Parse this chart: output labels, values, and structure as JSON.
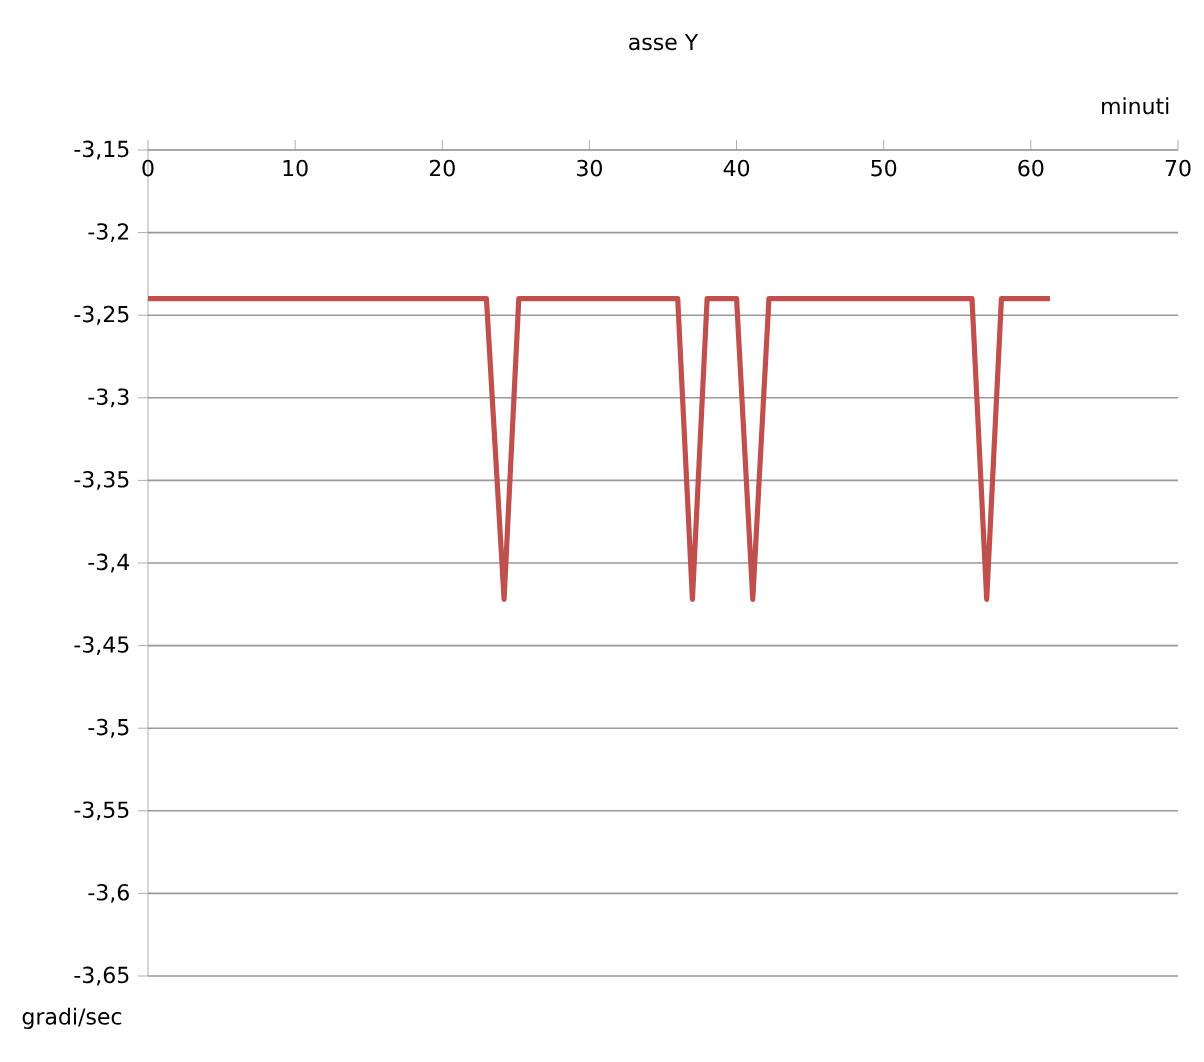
{
  "chart_data": {
    "type": "line",
    "title": "asse Y",
    "xlabel": "minuti",
    "ylabel": "gradi/sec",
    "xlim": [
      0,
      70
    ],
    "xticks": [
      0,
      10,
      20,
      30,
      40,
      50,
      60,
      70
    ],
    "ylim": [
      -3.65,
      -3.15
    ],
    "yticks": [
      {
        "value": -3.65,
        "label": "-3,65"
      },
      {
        "value": -3.6,
        "label": "-3,6"
      },
      {
        "value": -3.55,
        "label": "-3,55"
      },
      {
        "value": -3.5,
        "label": "-3,5"
      },
      {
        "value": -3.45,
        "label": "-3,45"
      },
      {
        "value": -3.4,
        "label": "-3,4"
      },
      {
        "value": -3.35,
        "label": "-3,35"
      },
      {
        "value": -3.3,
        "label": "-3,3"
      },
      {
        "value": -3.25,
        "label": "-3,25"
      },
      {
        "value": -3.2,
        "label": "-3,2"
      },
      {
        "value": -3.15,
        "label": "-3,15"
      }
    ],
    "grid": "y",
    "marker": "none",
    "line_style": "solid",
    "series": [
      {
        "color": "#c0504d",
        "x": [
          0,
          23,
          24.2,
          25.2,
          36,
          37,
          38,
          40,
          41.1,
          42.2,
          56,
          57,
          58,
          61.3
        ],
        "values": [
          -3.24,
          -3.24,
          -3.422,
          -3.24,
          -3.24,
          -3.422,
          -3.24,
          -3.24,
          -3.422,
          -3.24,
          -3.24,
          -3.422,
          -3.24,
          -3.24
        ]
      }
    ]
  }
}
